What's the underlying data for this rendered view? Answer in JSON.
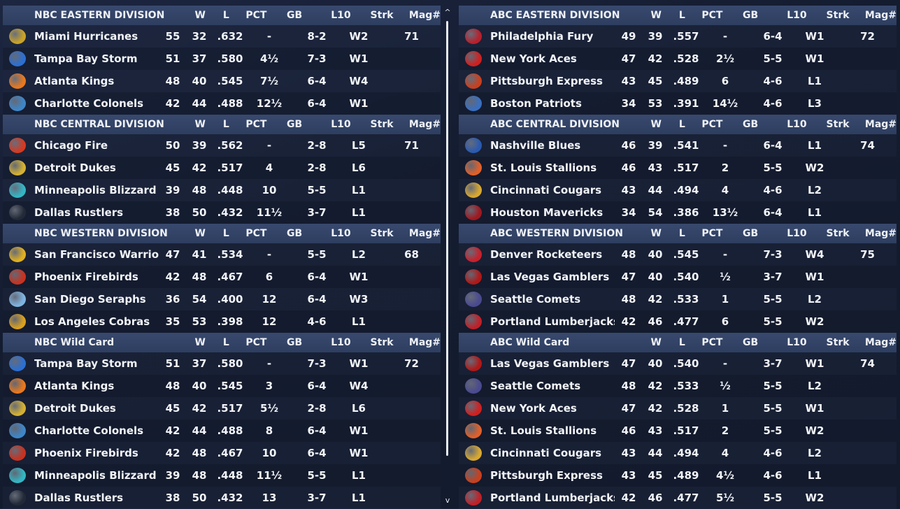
{
  "columns": {
    "w": "W",
    "l": "L",
    "pct": "PCT",
    "gb": "GB",
    "l10": "L10",
    "strk": "Strk",
    "mag": "Mag#"
  },
  "scroll": {
    "up": "^",
    "down": "v"
  },
  "left": [
    {
      "title": "NBC EASTERN DIVISION",
      "rows": [
        {
          "team": "Miami Hurricanes",
          "w": "55",
          "l": "32",
          "pct": ".632",
          "gb": "-",
          "l10": "8-2",
          "strk": "W2",
          "mag": "71",
          "color": "#c9a227"
        },
        {
          "team": "Tampa Bay Storm",
          "w": "51",
          "l": "37",
          "pct": ".580",
          "gb": "4½",
          "l10": "7-3",
          "strk": "W1",
          "mag": "",
          "color": "#2c6fd1"
        },
        {
          "team": "Atlanta Kings",
          "w": "48",
          "l": "40",
          "pct": ".545",
          "gb": "7½",
          "l10": "6-4",
          "strk": "W4",
          "mag": "",
          "color": "#e8781e"
        },
        {
          "team": "Charlotte Colonels",
          "w": "42",
          "l": "44",
          "pct": ".488",
          "gb": "12½",
          "l10": "6-4",
          "strk": "W1",
          "mag": "",
          "color": "#3e86c8"
        }
      ]
    },
    {
      "title": "NBC CENTRAL DIVISION",
      "rows": [
        {
          "team": "Chicago Fire",
          "w": "50",
          "l": "39",
          "pct": ".562",
          "gb": "-",
          "l10": "2-8",
          "strk": "L5",
          "mag": "71",
          "color": "#d43a22"
        },
        {
          "team": "Detroit Dukes",
          "w": "45",
          "l": "42",
          "pct": ".517",
          "gb": "4",
          "l10": "2-8",
          "strk": "L6",
          "mag": "",
          "color": "#d4b132"
        },
        {
          "team": "Minneapolis Blizzard",
          "w": "39",
          "l": "48",
          "pct": ".448",
          "gb": "10",
          "l10": "5-5",
          "strk": "L1",
          "mag": "",
          "color": "#34b5c4"
        },
        {
          "team": "Dallas Rustlers",
          "w": "38",
          "l": "50",
          "pct": ".432",
          "gb": "11½",
          "l10": "3-7",
          "strk": "L1",
          "mag": "",
          "color": "#222a38"
        }
      ]
    },
    {
      "title": "NBC WESTERN DIVISION",
      "rows": [
        {
          "team": "San Francisco Warriors",
          "w": "47",
          "l": "41",
          "pct": ".534",
          "gb": "-",
          "l10": "5-5",
          "strk": "L2",
          "mag": "68",
          "color": "#e0b020"
        },
        {
          "team": "Phoenix Firebirds",
          "w": "42",
          "l": "48",
          "pct": ".467",
          "gb": "6",
          "l10": "6-4",
          "strk": "W1",
          "mag": "",
          "color": "#c83220"
        },
        {
          "team": "San Diego Seraphs",
          "w": "36",
          "l": "54",
          "pct": ".400",
          "gb": "12",
          "l10": "6-4",
          "strk": "W3",
          "mag": "",
          "color": "#7fb4e0"
        },
        {
          "team": "Los Angeles Cobras",
          "w": "35",
          "l": "53",
          "pct": ".398",
          "gb": "12",
          "l10": "4-6",
          "strk": "L1",
          "mag": "",
          "color": "#d8a020"
        }
      ]
    },
    {
      "title": "NBC  Wild Card",
      "rows": [
        {
          "team": "Tampa Bay Storm",
          "w": "51",
          "l": "37",
          "pct": ".580",
          "gb": "-",
          "l10": "7-3",
          "strk": "W1",
          "mag": "72",
          "color": "#2c6fd1"
        },
        {
          "team": "Atlanta Kings",
          "w": "48",
          "l": "40",
          "pct": ".545",
          "gb": "3",
          "l10": "6-4",
          "strk": "W4",
          "mag": "",
          "color": "#e8781e"
        },
        {
          "team": "Detroit Dukes",
          "w": "45",
          "l": "42",
          "pct": ".517",
          "gb": "5½",
          "l10": "2-8",
          "strk": "L6",
          "mag": "",
          "color": "#d4b132"
        },
        {
          "team": "Charlotte Colonels",
          "w": "42",
          "l": "44",
          "pct": ".488",
          "gb": "8",
          "l10": "6-4",
          "strk": "W1",
          "mag": "",
          "color": "#3e86c8"
        },
        {
          "team": "Phoenix Firebirds",
          "w": "42",
          "l": "48",
          "pct": ".467",
          "gb": "10",
          "l10": "6-4",
          "strk": "W1",
          "mag": "",
          "color": "#c83220"
        },
        {
          "team": "Minneapolis Blizzard",
          "w": "39",
          "l": "48",
          "pct": ".448",
          "gb": "11½",
          "l10": "5-5",
          "strk": "L1",
          "mag": "",
          "color": "#34b5c4"
        },
        {
          "team": "Dallas Rustlers",
          "w": "38",
          "l": "50",
          "pct": ".432",
          "gb": "13",
          "l10": "3-7",
          "strk": "L1",
          "mag": "",
          "color": "#222a38"
        }
      ]
    }
  ],
  "right": [
    {
      "title": "ABC EASTERN DIVISION",
      "rows": [
        {
          "team": "Philadelphia Fury",
          "w": "49",
          "l": "39",
          "pct": ".557",
          "gb": "-",
          "l10": "6-4",
          "strk": "W1",
          "mag": "72",
          "color": "#b8202c"
        },
        {
          "team": "New York Aces",
          "w": "47",
          "l": "42",
          "pct": ".528",
          "gb": "2½",
          "l10": "5-5",
          "strk": "W1",
          "mag": "",
          "color": "#d02020"
        },
        {
          "team": "Pittsburgh Express",
          "w": "43",
          "l": "45",
          "pct": ".489",
          "gb": "6",
          "l10": "4-6",
          "strk": "L1",
          "mag": "",
          "color": "#c8401e"
        },
        {
          "team": "Boston Patriots",
          "w": "34",
          "l": "53",
          "pct": ".391",
          "gb": "14½",
          "l10": "4-6",
          "strk": "L3",
          "mag": "",
          "color": "#3a6fc0"
        }
      ]
    },
    {
      "title": "ABC CENTRAL DIVISION",
      "rows": [
        {
          "team": "Nashville Blues",
          "w": "46",
          "l": "39",
          "pct": ".541",
          "gb": "-",
          "l10": "6-4",
          "strk": "L1",
          "mag": "74",
          "color": "#2a5ab0"
        },
        {
          "team": "St. Louis Stallions",
          "w": "46",
          "l": "43",
          "pct": ".517",
          "gb": "2",
          "l10": "5-5",
          "strk": "W2",
          "mag": "",
          "color": "#e0602a"
        },
        {
          "team": "Cincinnati Cougars",
          "w": "43",
          "l": "44",
          "pct": ".494",
          "gb": "4",
          "l10": "4-6",
          "strk": "L2",
          "mag": "",
          "color": "#d8a830"
        },
        {
          "team": "Houston Mavericks",
          "w": "34",
          "l": "54",
          "pct": ".386",
          "gb": "13½",
          "l10": "6-4",
          "strk": "L1",
          "mag": "",
          "color": "#a01820"
        }
      ]
    },
    {
      "title": "ABC WESTERN DIVISION",
      "rows": [
        {
          "team": "Denver Rocketeers",
          "w": "48",
          "l": "40",
          "pct": ".545",
          "gb": "-",
          "l10": "7-3",
          "strk": "W4",
          "mag": "75",
          "color": "#c8202c"
        },
        {
          "team": "Las Vegas Gamblers",
          "w": "47",
          "l": "40",
          "pct": ".540",
          "gb": "½",
          "l10": "3-7",
          "strk": "W1",
          "mag": "",
          "color": "#b01818"
        },
        {
          "team": "Seattle Comets",
          "w": "48",
          "l": "42",
          "pct": ".533",
          "gb": "1",
          "l10": "5-5",
          "strk": "L2",
          "mag": "",
          "color": "#4a4a90"
        },
        {
          "team": "Portland Lumberjacks",
          "w": "42",
          "l": "46",
          "pct": ".477",
          "gb": "6",
          "l10": "5-5",
          "strk": "W2",
          "mag": "",
          "color": "#c02028"
        }
      ]
    },
    {
      "title": "ABC  Wild Card",
      "rows": [
        {
          "team": "Las Vegas Gamblers",
          "w": "47",
          "l": "40",
          "pct": ".540",
          "gb": "-",
          "l10": "3-7",
          "strk": "W1",
          "mag": "74",
          "color": "#b01818"
        },
        {
          "team": "Seattle Comets",
          "w": "48",
          "l": "42",
          "pct": ".533",
          "gb": "½",
          "l10": "5-5",
          "strk": "L2",
          "mag": "",
          "color": "#4a4a90"
        },
        {
          "team": "New York Aces",
          "w": "47",
          "l": "42",
          "pct": ".528",
          "gb": "1",
          "l10": "5-5",
          "strk": "W1",
          "mag": "",
          "color": "#d02020"
        },
        {
          "team": "St. Louis Stallions",
          "w": "46",
          "l": "43",
          "pct": ".517",
          "gb": "2",
          "l10": "5-5",
          "strk": "W2",
          "mag": "",
          "color": "#e0602a"
        },
        {
          "team": "Cincinnati Cougars",
          "w": "43",
          "l": "44",
          "pct": ".494",
          "gb": "4",
          "l10": "4-6",
          "strk": "L2",
          "mag": "",
          "color": "#d8a830"
        },
        {
          "team": "Pittsburgh Express",
          "w": "43",
          "l": "45",
          "pct": ".489",
          "gb": "4½",
          "l10": "4-6",
          "strk": "L1",
          "mag": "",
          "color": "#c8401e"
        },
        {
          "team": "Portland Lumberjacks",
          "w": "42",
          "l": "46",
          "pct": ".477",
          "gb": "5½",
          "l10": "5-5",
          "strk": "W2",
          "mag": "",
          "color": "#c02028"
        }
      ]
    }
  ]
}
